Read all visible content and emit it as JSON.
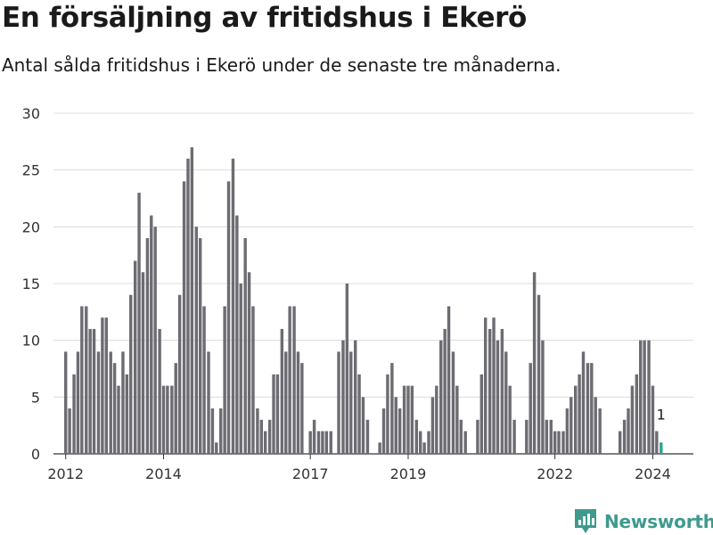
{
  "header": {
    "title": "En försäljning av fritidshus i Ekerö",
    "subtitle": "Antal sålda fritidshus i Ekerö under de senaste tre månaderna."
  },
  "chart_data": {
    "type": "bar",
    "title": "En försäljning av fritidshus i Ekerö",
    "subtitle": "Antal sålda fritidshus i Ekerö under de senaste tre månaderna.",
    "xlabel": "",
    "ylabel": "",
    "ylim": [
      0,
      30
    ],
    "yticks": [
      0,
      5,
      10,
      15,
      20,
      25,
      30
    ],
    "xlim": [
      2011.75,
      2024.83
    ],
    "xticks": [
      2012,
      2014,
      2017,
      2019,
      2022,
      2024
    ],
    "grid": true,
    "legend": "none",
    "bar_color": "#6d6c72",
    "highlight_color": "#2ca58d",
    "x": [
      2012.0,
      2012.08,
      2012.17,
      2012.25,
      2012.33,
      2012.42,
      2012.5,
      2012.58,
      2012.67,
      2012.75,
      2012.83,
      2012.92,
      2013.0,
      2013.08,
      2013.17,
      2013.25,
      2013.33,
      2013.42,
      2013.5,
      2013.58,
      2013.67,
      2013.75,
      2013.83,
      2013.92,
      2014.0,
      2014.08,
      2014.17,
      2014.25,
      2014.33,
      2014.42,
      2014.5,
      2014.58,
      2014.67,
      2014.75,
      2014.83,
      2014.92,
      2015.0,
      2015.08,
      2015.17,
      2015.25,
      2015.33,
      2015.42,
      2015.5,
      2015.58,
      2015.67,
      2015.75,
      2015.83,
      2015.92,
      2016.0,
      2016.08,
      2016.17,
      2016.25,
      2016.33,
      2016.42,
      2016.5,
      2016.58,
      2016.67,
      2016.75,
      2016.83,
      2016.92,
      2017.0,
      2017.08,
      2017.17,
      2017.25,
      2017.33,
      2017.42,
      2017.5,
      2017.58,
      2017.67,
      2017.75,
      2017.83,
      2017.92,
      2018.0,
      2018.08,
      2018.17,
      2018.25,
      2018.33,
      2018.42,
      2018.5,
      2018.58,
      2018.67,
      2018.75,
      2018.83,
      2018.92,
      2019.0,
      2019.08,
      2019.17,
      2019.25,
      2019.33,
      2019.42,
      2019.5,
      2019.58,
      2019.67,
      2019.75,
      2019.83,
      2019.92,
      2020.0,
      2020.08,
      2020.17,
      2020.25,
      2020.33,
      2020.42,
      2020.5,
      2020.58,
      2020.67,
      2020.75,
      2020.83,
      2020.92,
      2021.0,
      2021.08,
      2021.17,
      2021.25,
      2021.33,
      2021.42,
      2021.5,
      2021.58,
      2021.67,
      2021.75,
      2021.83,
      2021.92,
      2022.0,
      2022.08,
      2022.17,
      2022.25,
      2022.33,
      2022.42,
      2022.5,
      2022.58,
      2022.67,
      2022.75,
      2022.83,
      2022.92,
      2023.0,
      2023.08,
      2023.17,
      2023.25,
      2023.33,
      2023.42,
      2023.5,
      2023.58,
      2023.67,
      2023.75,
      2023.83,
      2023.92,
      2024.0,
      2024.08,
      2024.17
    ],
    "values": [
      9,
      4,
      7,
      9,
      13,
      13,
      11,
      11,
      9,
      12,
      12,
      9,
      8,
      6,
      9,
      7,
      14,
      17,
      23,
      16,
      19,
      21,
      20,
      11,
      6,
      6,
      6,
      8,
      14,
      24,
      26,
      27,
      20,
      19,
      13,
      9,
      4,
      1,
      4,
      13,
      24,
      26,
      21,
      15,
      19,
      16,
      13,
      4,
      3,
      2,
      3,
      7,
      7,
      11,
      9,
      13,
      13,
      9,
      8,
      0,
      2,
      3,
      2,
      2,
      2,
      2,
      0,
      9,
      10,
      15,
      9,
      10,
      7,
      5,
      3,
      0,
      0,
      1,
      4,
      7,
      8,
      5,
      4,
      6,
      6,
      6,
      3,
      2,
      1,
      2,
      5,
      6,
      10,
      11,
      13,
      9,
      6,
      3,
      2,
      0,
      0,
      3,
      7,
      12,
      11,
      12,
      10,
      11,
      9,
      6,
      3,
      0,
      0,
      3,
      8,
      16,
      14,
      10,
      3,
      3,
      2,
      2,
      2,
      4,
      5,
      6,
      7,
      9,
      8,
      8,
      5,
      4,
      0,
      0,
      0,
      0,
      2,
      3,
      4,
      6,
      7,
      10,
      10,
      10,
      6,
      2,
      1
    ],
    "annotations": [
      {
        "x": 2024.17,
        "value": 1,
        "text": "1"
      }
    ]
  },
  "brand": {
    "name": "Newsworthy",
    "icon": "newsworthy-logo-icon",
    "color": "#3f9a8d"
  }
}
